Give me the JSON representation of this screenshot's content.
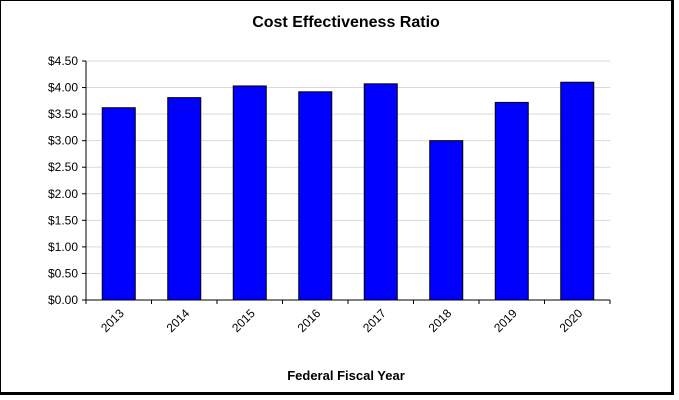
{
  "chart_data": {
    "type": "bar",
    "title": "Cost Effectiveness Ratio",
    "xlabel": "Federal Fiscal Year",
    "ylabel": "",
    "categories": [
      "2013",
      "2014",
      "2015",
      "2016",
      "2017",
      "2018",
      "2019",
      "2020"
    ],
    "values": [
      3.62,
      3.81,
      4.03,
      3.92,
      4.07,
      3.0,
      3.72,
      4.1
    ],
    "ylim": [
      0,
      4.5
    ],
    "yticks": [
      "$0.00",
      "$0.50",
      "$1.00",
      "$1.50",
      "$2.00",
      "$2.50",
      "$3.00",
      "$3.50",
      "$4.00",
      "$4.50"
    ],
    "ytick_values": [
      0,
      0.5,
      1,
      1.5,
      2,
      2.5,
      3,
      3.5,
      4,
      4.5
    ],
    "grid": true,
    "bar_color": "#0000ff",
    "bar_edge_color": "#000000",
    "grid_color": "#d9d9d9"
  }
}
